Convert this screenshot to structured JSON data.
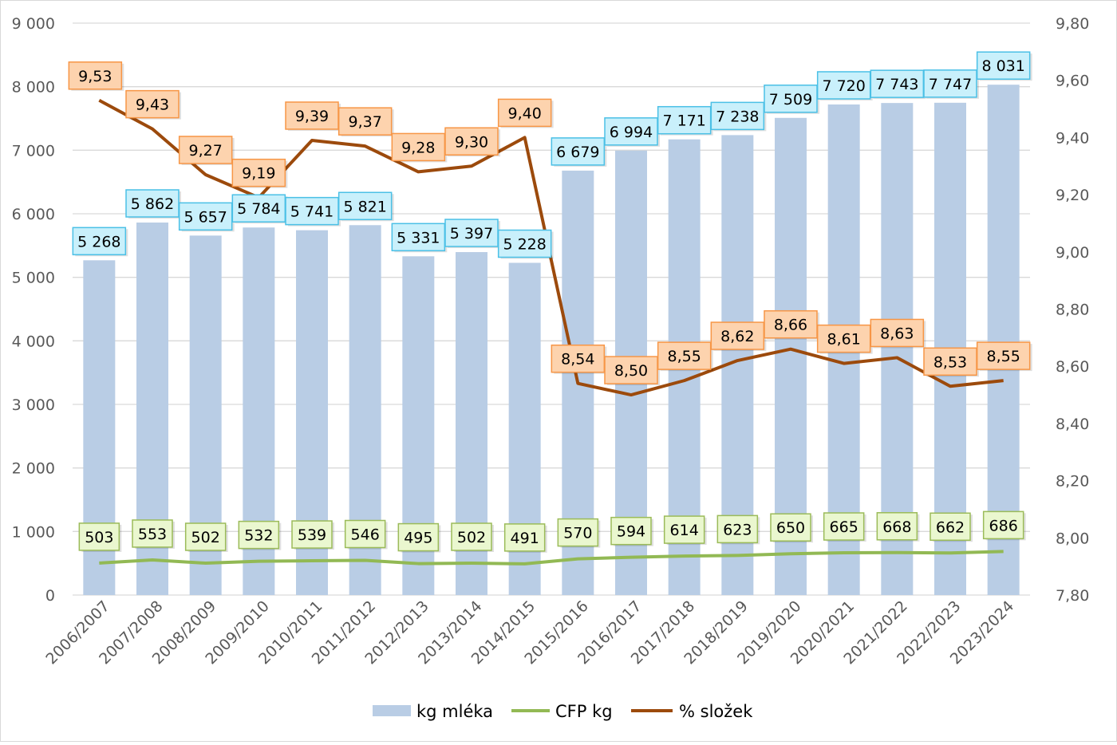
{
  "chart_data": {
    "type": "bar+line",
    "categories": [
      "2006/2007",
      "2007/2008",
      "2008/2009",
      "2009/2010",
      "2010/2011",
      "2011/2012",
      "2012/2013",
      "2013/2014",
      "2014/2015",
      "2015/2016",
      "2016/2017",
      "2017/2018",
      "2018/2019",
      "2019/2020",
      "2020/2021",
      "2021/2022",
      "2022/2023",
      "2023/2024"
    ],
    "series": [
      {
        "name": "kg mléka",
        "type": "bar",
        "axis": "left",
        "color": "#B9CDE5",
        "values": [
          5268,
          5862,
          5657,
          5784,
          5741,
          5821,
          5331,
          5397,
          5228,
          6679,
          6994,
          7171,
          7238,
          7509,
          7720,
          7743,
          7747,
          8031
        ],
        "labels": [
          "5 268",
          "5 862",
          "5 657",
          "5 784",
          "5 741",
          "5 821",
          "5 331",
          "5 397",
          "5 228",
          "6 679",
          "6 994",
          "7 171",
          "7 238",
          "7 509",
          "7 720",
          "7 743",
          "7 747",
          "8 031"
        ]
      },
      {
        "name": "CFP kg",
        "type": "line",
        "axis": "left",
        "color": "#92B954",
        "values": [
          503,
          553,
          502,
          532,
          539,
          546,
          495,
          502,
          491,
          570,
          594,
          614,
          623,
          650,
          665,
          668,
          662,
          686
        ],
        "labels": [
          "503",
          "553",
          "502",
          "532",
          "539",
          "546",
          "495",
          "502",
          "491",
          "570",
          "594",
          "614",
          "623",
          "650",
          "665",
          "668",
          "662",
          "686"
        ]
      },
      {
        "name": "% složek",
        "type": "line",
        "axis": "right",
        "color": "#9C4A0C",
        "values": [
          9.53,
          9.43,
          9.27,
          9.19,
          9.39,
          9.37,
          9.28,
          9.3,
          9.4,
          8.54,
          8.5,
          8.55,
          8.62,
          8.66,
          8.61,
          8.63,
          8.53,
          8.55
        ],
        "labels": [
          "9,53",
          "9,43",
          "9,27",
          "9,19",
          "9,39",
          "9,37",
          "9,28",
          "9,30",
          "9,40",
          "8,54",
          "8,50",
          "8,55",
          "8,62",
          "8,66",
          "8,61",
          "8,63",
          "8,53",
          "8,55"
        ]
      }
    ],
    "left_axis": {
      "min": 0,
      "max": 9000,
      "ticks": [
        "0",
        "1 000",
        "2 000",
        "3 000",
        "4 000",
        "5 000",
        "6 000",
        "7 000",
        "8 000",
        "9 000"
      ]
    },
    "right_axis": {
      "min": 7.8,
      "max": 9.8,
      "ticks": [
        "7,80",
        "8,00",
        "8,20",
        "8,40",
        "8,60",
        "8,80",
        "9,00",
        "9,20",
        "9,40",
        "9,60",
        "9,80"
      ]
    },
    "grid": true,
    "legend": "bottom"
  }
}
